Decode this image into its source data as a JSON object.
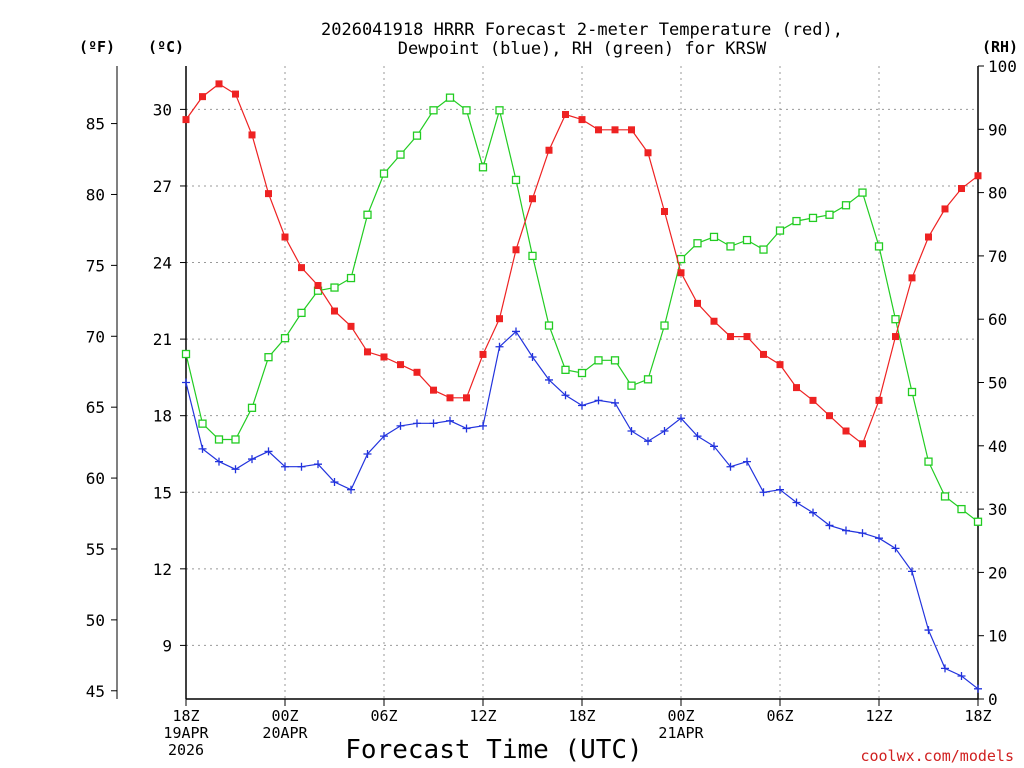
{
  "chart_data": {
    "type": "line",
    "title_line1": "2026041918 HRRR Forecast 2-meter Temperature (red),",
    "title_line2": "Dewpoint (blue), RH (green) for KRSW",
    "xlabel": "Forecast Time (UTC)",
    "credit": "coolwx.com/models",
    "units": {
      "fahrenheit": "(ºF)",
      "celsius": "(ºC)",
      "rh": "(RH)"
    },
    "colors": {
      "temperature": "#ee2222",
      "dewpoint": "#2233dd",
      "rh": "#22cc22",
      "grid": "#999999"
    },
    "x_range_hours": [
      0,
      48
    ],
    "xticks": [
      {
        "hour": 0,
        "lines": [
          "18Z",
          "19APR",
          "2026"
        ]
      },
      {
        "hour": 6,
        "lines": [
          "00Z",
          "20APR"
        ]
      },
      {
        "hour": 12,
        "lines": [
          "06Z"
        ]
      },
      {
        "hour": 18,
        "lines": [
          "12Z"
        ]
      },
      {
        "hour": 24,
        "lines": [
          "18Z"
        ]
      },
      {
        "hour": 30,
        "lines": [
          "00Z",
          "21APR"
        ]
      },
      {
        "hour": 36,
        "lines": [
          "06Z"
        ]
      },
      {
        "hour": 42,
        "lines": [
          "12Z"
        ]
      },
      {
        "hour": 48,
        "lines": [
          "18Z"
        ]
      }
    ],
    "celsius_axis": {
      "range": [
        6.9,
        31.7
      ],
      "ticks": [
        9,
        12,
        15,
        18,
        21,
        24,
        27,
        30
      ]
    },
    "fahrenheit_axis": {
      "ticks": [
        45,
        50,
        55,
        60,
        65,
        70,
        75,
        80,
        85
      ]
    },
    "rh_axis": {
      "range": [
        0,
        100
      ],
      "ticks": [
        0,
        10,
        20,
        30,
        40,
        50,
        60,
        70,
        80,
        90,
        100
      ]
    },
    "series": [
      {
        "name": "Temperature (red)",
        "unit": "C",
        "axis": "celsius",
        "marker": "filled-square",
        "values": [
          29.6,
          30.5,
          31.0,
          30.6,
          29.0,
          26.7,
          25.0,
          23.8,
          23.1,
          22.1,
          21.5,
          20.5,
          20.3,
          20.0,
          19.7,
          19.0,
          18.7,
          18.7,
          20.4,
          21.8,
          24.5,
          26.5,
          28.4,
          29.8,
          29.6,
          29.2,
          29.2,
          29.2,
          28.3,
          26.0,
          23.6,
          22.4,
          21.7,
          21.1,
          21.1,
          20.4,
          20.0,
          19.1,
          18.6,
          18.0,
          17.4,
          16.9,
          18.6,
          21.1,
          23.4,
          25.0,
          26.1,
          26.9,
          27.4
        ]
      },
      {
        "name": "Dewpoint (blue)",
        "unit": "C",
        "axis": "celsius",
        "marker": "plus",
        "values": [
          19.3,
          16.7,
          16.2,
          15.9,
          16.3,
          16.6,
          16.0,
          16.0,
          16.1,
          15.4,
          15.1,
          16.5,
          17.2,
          17.6,
          17.7,
          17.7,
          17.8,
          17.5,
          17.6,
          20.7,
          21.3,
          20.3,
          19.4,
          18.8,
          18.4,
          18.6,
          18.5,
          17.4,
          17.0,
          17.4,
          17.9,
          17.2,
          16.8,
          16.0,
          16.2,
          15.0,
          15.1,
          14.6,
          14.2,
          13.7,
          13.5,
          13.4,
          13.2,
          12.8,
          11.9,
          9.6,
          8.1,
          7.8,
          7.3
        ]
      },
      {
        "name": "RH (green)",
        "unit": "%",
        "axis": "rh",
        "marker": "open-square",
        "values": [
          54.5,
          43.5,
          41,
          41,
          46,
          54,
          57,
          61,
          64.5,
          65,
          66.5,
          76.5,
          83,
          86,
          89,
          93,
          95,
          93,
          84,
          93,
          82,
          70,
          59,
          52,
          51.5,
          53.5,
          53.5,
          49.5,
          50.5,
          59,
          69.5,
          72,
          73,
          71.5,
          72.5,
          71,
          74,
          75.5,
          76,
          76.5,
          78,
          80,
          71.5,
          60,
          48.5,
          37.5,
          32,
          30,
          28
        ]
      }
    ]
  }
}
